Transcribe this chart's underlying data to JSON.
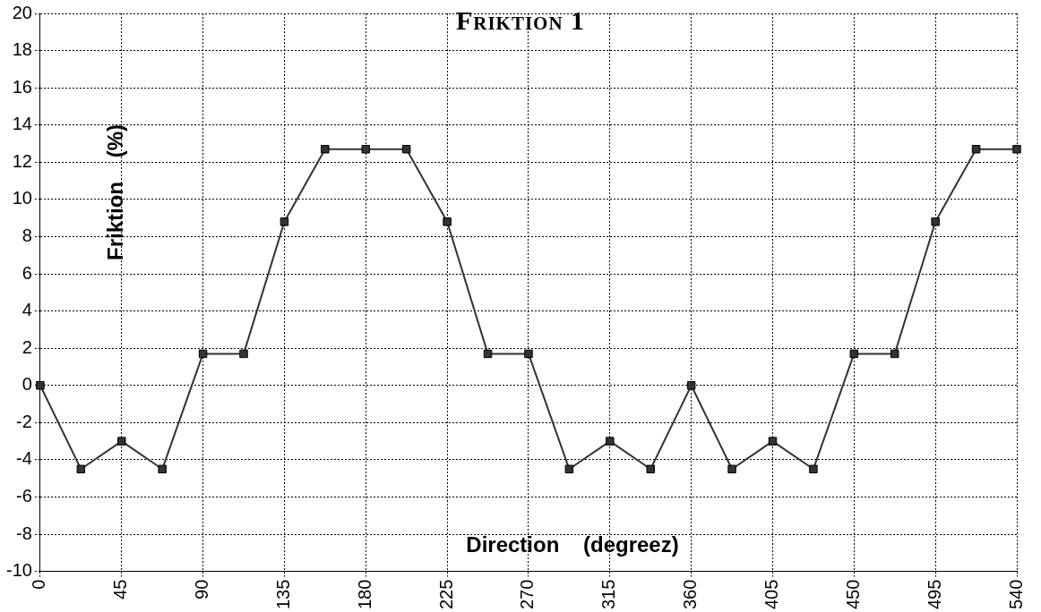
{
  "chart_data": {
    "type": "line",
    "title": "Friktion 1",
    "xlabel": "Direction    (degreez)",
    "ylabel": "Friktion    (%)",
    "x": [
      0,
      22.5,
      45,
      67.5,
      90,
      112.5,
      135,
      157.5,
      180,
      202.5,
      225,
      247.5,
      270,
      292.5,
      315,
      337.5,
      360,
      382.5,
      405,
      427.5,
      450,
      472.5,
      495,
      517.5,
      540
    ],
    "series": [
      {
        "color": "#333333",
        "values": [
          0,
          -4.5,
          -3,
          -4.5,
          1.7,
          1.7,
          8.8,
          12.7,
          12.7,
          12.7,
          8.8,
          1.7,
          1.7,
          -4.5,
          -3,
          -4.5,
          0,
          -4.5,
          -3,
          -4.5,
          1.7,
          1.7,
          8.8,
          12.7,
          12.7
        ]
      }
    ],
    "xlim": [
      0,
      540
    ],
    "xticks": [
      0,
      45,
      90,
      135,
      180,
      225,
      270,
      315,
      360,
      405,
      450,
      495,
      540
    ],
    "ylim": [
      -10,
      20
    ],
    "yticks": [
      -10,
      -8,
      -6,
      -4,
      -2,
      0,
      2,
      4,
      6,
      8,
      10,
      12,
      14,
      16,
      18,
      20
    ],
    "grid": true,
    "legend": false,
    "marker": "square",
    "line_style": "solid"
  }
}
